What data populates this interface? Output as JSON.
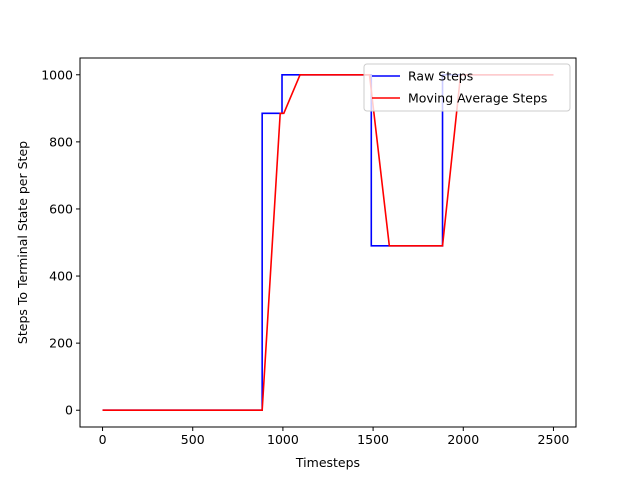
{
  "chart_data": {
    "type": "line",
    "xlabel": "Timesteps",
    "ylabel": "Steps To Terminal State per Step",
    "xlim": [
      -125,
      2625
    ],
    "ylim": [
      -50,
      1050
    ],
    "xticks": [
      0,
      500,
      1000,
      1500,
      2000,
      2500
    ],
    "yticks": [
      0,
      200,
      400,
      600,
      800,
      1000
    ],
    "xtick_labels": [
      "0",
      "500",
      "1000",
      "1500",
      "2000",
      "2500"
    ],
    "ytick_labels": [
      "0",
      "200",
      "400",
      "600",
      "800",
      "1000"
    ],
    "grid": false,
    "legend_position": "top-right",
    "series": [
      {
        "name": "Raw Steps",
        "color": "#0000ff",
        "x": [
          0,
          885,
          885,
          995,
          995,
          1490,
          1490,
          1885,
          1885,
          2500
        ],
        "y": [
          0,
          0,
          885,
          885,
          1000,
          1000,
          490,
          490,
          1000,
          1000
        ]
      },
      {
        "name": "Moving Average Steps",
        "color": "#ff0000",
        "x": [
          0,
          885,
          985,
          1005,
          1095,
          1480,
          1590,
          1885,
          1985,
          2500
        ],
        "y": [
          0,
          0,
          885,
          885,
          1000,
          1000,
          490,
          490,
          1000,
          1000
        ]
      }
    ]
  }
}
